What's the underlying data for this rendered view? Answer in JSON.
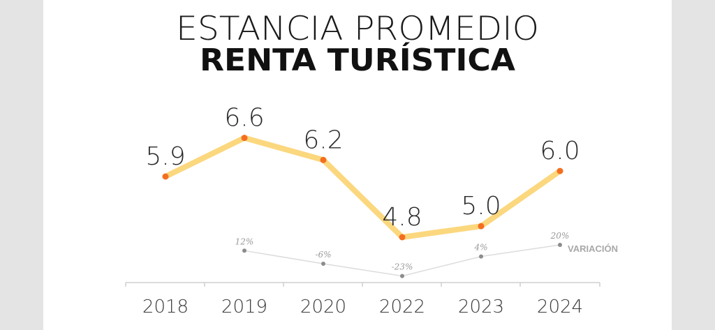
{
  "chart_data": {
    "type": "line",
    "title": "ESTANCIA PROMEDIO",
    "subtitle": "RENTA TURÍSTICA",
    "categories": [
      "2018",
      "2019",
      "2020",
      "2022",
      "2023",
      "2024"
    ],
    "series": [
      {
        "values": [
          5.9,
          6.6,
          6.2,
          4.8,
          5.0,
          6.0
        ],
        "labels": [
          "5.9",
          "6.6",
          "6.2",
          "4.8",
          "5.0",
          "6.0"
        ],
        "line_color": "#fbd77e",
        "point_color": "#f36f1f"
      },
      {
        "name": "VARIACIÓN",
        "values": [
          null,
          12,
          -6,
          -23,
          4,
          20
        ],
        "labels": [
          "",
          "12%",
          "-6%",
          "-23%",
          "4%",
          "20%"
        ],
        "line_color": "#dcdcdc",
        "point_color": "#8c8c8c"
      }
    ],
    "grid": false
  }
}
